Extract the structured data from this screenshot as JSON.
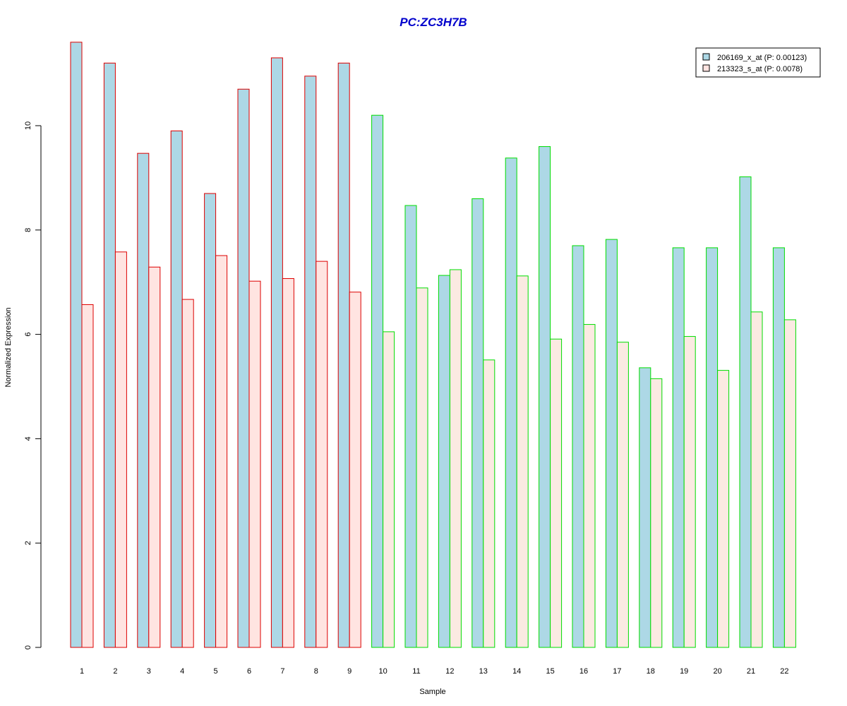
{
  "chart_data": {
    "type": "bar",
    "title": "PC:ZC3H7B",
    "xlabel": "Sample",
    "ylabel": "Normalized Expression",
    "categories": [
      "1",
      "2",
      "3",
      "4",
      "5",
      "6",
      "7",
      "8",
      "9",
      "10",
      "11",
      "12",
      "13",
      "14",
      "15",
      "16",
      "17",
      "18",
      "19",
      "20",
      "21",
      "22"
    ],
    "yticks": [
      0,
      2,
      4,
      6,
      8,
      10
    ],
    "ylim": [
      0,
      11.6
    ],
    "legend_position": "top-right",
    "group_border_colors": {
      "samples_1_to_9": "#dd0000",
      "samples_10_to_22": "#00dd00"
    },
    "series": [
      {
        "name": "206169_x_at (P: 0.00123)",
        "color": "#add8e6",
        "values": [
          11.6,
          11.2,
          9.47,
          9.9,
          8.7,
          10.7,
          11.3,
          10.95,
          11.2,
          10.2,
          8.47,
          7.13,
          8.6,
          9.38,
          9.6,
          7.7,
          7.82,
          5.36,
          7.66,
          7.66,
          9.02,
          7.66
        ]
      },
      {
        "name": "213323_s_at (P: 0.0078)",
        "color": "#ffe4e1",
        "color_alt": "#fbeae2",
        "values": [
          6.57,
          7.58,
          7.29,
          6.67,
          7.51,
          7.02,
          7.07,
          7.4,
          6.81,
          6.05,
          6.89,
          7.24,
          5.51,
          7.12,
          5.91,
          6.19,
          5.85,
          5.15,
          5.96,
          5.31,
          6.43,
          6.28
        ]
      }
    ]
  }
}
